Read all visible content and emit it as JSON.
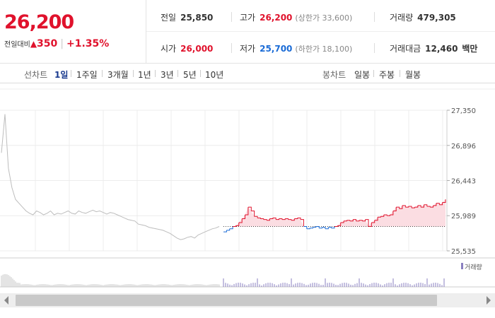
{
  "quote": {
    "price": "26,200",
    "change_label": "전일대비",
    "change_symbol": "▲",
    "change_value": "350",
    "change_rate": "+1.35%"
  },
  "stats": {
    "prev_close_label": "전일",
    "prev_close": "25,850",
    "high_label": "고가",
    "high": "26,200",
    "upper_limit_label": "(상한가 33,600)",
    "volume_label": "거래량",
    "volume": "479,305",
    "open_label": "시가",
    "open": "26,000",
    "low_label": "저가",
    "low": "25,700",
    "lower_limit_label": "(하한가 18,100)",
    "amount_label": "거래대금",
    "amount": "12,460",
    "amount_unit": "백만"
  },
  "periods": {
    "line_label": "선차트",
    "line_items": [
      "1일",
      "1주일",
      "3개월",
      "1년",
      "3년",
      "5년",
      "10년"
    ],
    "active": "1일",
    "candle_label": "봉차트",
    "candle_items": [
      "일봉",
      "주봉",
      "월봉"
    ]
  },
  "chart_data": {
    "type": "line",
    "y_ticks": [
      "27,350",
      "26,896",
      "26,443",
      "25,989",
      "25,535"
    ],
    "ylim": [
      25535,
      27350
    ],
    "prev_close": 25850,
    "volume_legend": "거래량",
    "colors": {
      "up": "#e0122c",
      "down": "#1a6bd6",
      "prev_day": "#bdbdbd",
      "fill": "#fbdde2",
      "volume": "#8a7fc0"
    },
    "prev_day_series": [
      26800,
      27300,
      26600,
      26350,
      26200,
      26150,
      26100,
      26050,
      26020,
      26000,
      26050,
      26030,
      26000,
      26020,
      26050,
      26000,
      26020,
      26010,
      26030,
      26050,
      26020,
      26010,
      26050,
      26030,
      26020,
      26040,
      26060,
      26040,
      26050,
      26030,
      26010,
      26030,
      26020,
      26000,
      25980,
      25960,
      25940,
      25930,
      25920,
      25880,
      25870,
      25860,
      25840,
      25830,
      25820,
      25810,
      25800,
      25780,
      25760,
      25730,
      25700,
      25680,
      25690,
      25710,
      25720,
      25700,
      25740,
      25760,
      25780,
      25800,
      25820,
      25830,
      25850
    ],
    "today_series": [
      25780,
      25800,
      25820,
      25850,
      25860,
      25900,
      25950,
      26000,
      26100,
      26050,
      25980,
      25960,
      25950,
      25940,
      25930,
      25950,
      25960,
      25940,
      25950,
      25940,
      25950,
      25940,
      25930,
      25950,
      25960,
      25940,
      25850,
      25820,
      25830,
      25840,
      25850,
      25830,
      25840,
      25820,
      25840,
      25830,
      25850,
      25860,
      25900,
      25920,
      25930,
      25920,
      25940,
      25920,
      25930,
      25920,
      25940,
      25850,
      25900,
      25930,
      25970,
      25980,
      26000,
      25990,
      26000,
      26050,
      26100,
      26080,
      26120,
      26100,
      26110,
      26090,
      26100,
      26120,
      26100,
      26130,
      26110,
      26100,
      26120,
      26150,
      26130,
      26160,
      26200
    ]
  }
}
